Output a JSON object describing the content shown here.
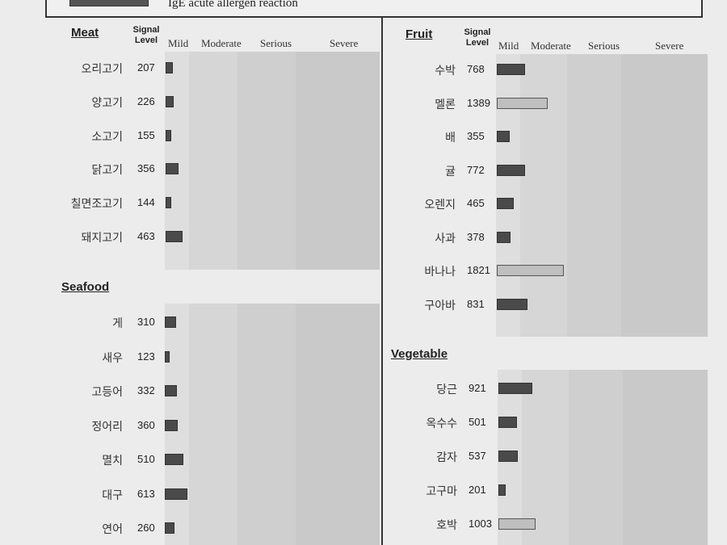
{
  "legend": {
    "text": "IgE acute allergen reaction"
  },
  "header": {
    "signal_line1": "Signal",
    "signal_line2": "Level",
    "mild": "Mild",
    "moderate": "Moderate",
    "serious": "Serious",
    "severe": "Severe"
  },
  "colors": {
    "bar_dark": "#4a4a4a",
    "bar_light": "#bfbfbf",
    "band1": "#dedede",
    "band2": "#d6d6d6",
    "band3": "#cfcfcf",
    "band4": "#c9c9c9"
  },
  "sections": {
    "meat": {
      "title": "Meat",
      "items": [
        {
          "name": "오리고기",
          "value": "207",
          "level": 207,
          "style": "dark"
        },
        {
          "name": "양고기",
          "value": "226",
          "level": 226,
          "style": "dark"
        },
        {
          "name": "소고기",
          "value": "155",
          "level": 155,
          "style": "dark"
        },
        {
          "name": "닭고기",
          "value": "356",
          "level": 356,
          "style": "dark"
        },
        {
          "name": "칠면조고기",
          "value": "144",
          "level": 144,
          "style": "dark"
        },
        {
          "name": "돼지고기",
          "value": "463",
          "level": 463,
          "style": "dark"
        }
      ]
    },
    "seafood": {
      "title": "Seafood",
      "items": [
        {
          "name": "게",
          "value": "310",
          "level": 310,
          "style": "dark"
        },
        {
          "name": "새우",
          "value": "123",
          "level": 123,
          "style": "dark"
        },
        {
          "name": "고등어",
          "value": "332",
          "level": 332,
          "style": "dark"
        },
        {
          "name": "정어리",
          "value": "360",
          "level": 360,
          "style": "dark"
        },
        {
          "name": "멸치",
          "value": "510",
          "level": 510,
          "style": "dark"
        },
        {
          "name": "대구",
          "value": "613",
          "level": 613,
          "style": "dark"
        },
        {
          "name": "연어",
          "value": "260",
          "level": 260,
          "style": "dark"
        }
      ]
    },
    "fruit": {
      "title": "Fruit",
      "items": [
        {
          "name": "수박",
          "value": "768",
          "level": 768,
          "style": "dark"
        },
        {
          "name": "멜론",
          "value": "1389",
          "level": 1389,
          "style": "light"
        },
        {
          "name": "배",
          "value": "355",
          "level": 355,
          "style": "dark"
        },
        {
          "name": "귤",
          "value": "772",
          "level": 772,
          "style": "dark"
        },
        {
          "name": "오렌지",
          "value": "465",
          "level": 465,
          "style": "dark"
        },
        {
          "name": "사과",
          "value": "378",
          "level": 378,
          "style": "dark"
        },
        {
          "name": "바나나",
          "value": "1821",
          "level": 1821,
          "style": "light"
        },
        {
          "name": "구아바",
          "value": "831",
          "level": 831,
          "style": "dark"
        }
      ]
    },
    "vegetable": {
      "title": "Vegetable",
      "items": [
        {
          "name": "당근",
          "value": "921",
          "level": 921,
          "style": "dark"
        },
        {
          "name": "옥수수",
          "value": "501",
          "level": 501,
          "style": "dark"
        },
        {
          "name": "감자",
          "value": "537",
          "level": 537,
          "style": "dark"
        },
        {
          "name": "고구마",
          "value": "201",
          "level": 201,
          "style": "dark"
        },
        {
          "name": "호박",
          "value": "1003",
          "level": 1003,
          "style": "light"
        }
      ]
    }
  }
}
